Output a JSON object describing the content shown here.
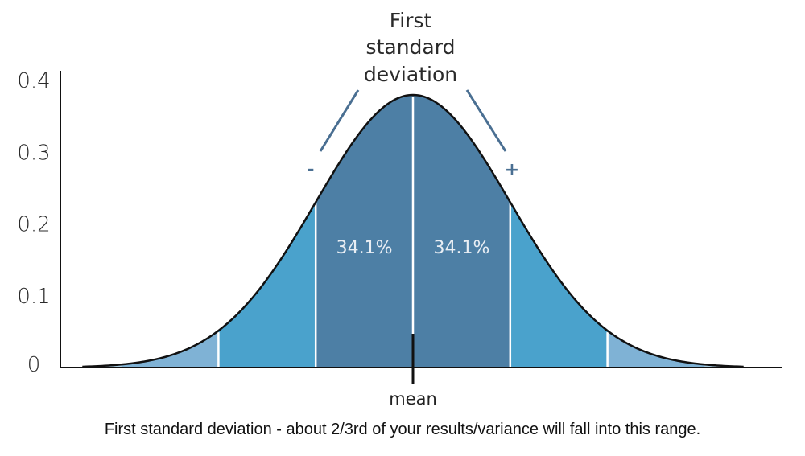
{
  "chart_data": {
    "type": "area",
    "title": "",
    "xlabel": "",
    "ylabel": "",
    "ylim": [
      0,
      0.4
    ],
    "yticks": [
      "0",
      "0.1",
      "0.2",
      "0.3",
      "0.4"
    ],
    "ytick_values": [
      0,
      0.1,
      0.2,
      0.3,
      0.4
    ],
    "xlim": [
      -3.4,
      3.4
    ],
    "distribution": {
      "name": "standard normal",
      "mean": 0,
      "sd": 1
    },
    "bands": [
      {
        "from": -3,
        "to": -2,
        "color": "#7fb2d5"
      },
      {
        "from": -2,
        "to": -1,
        "color": "#4aa2cc"
      },
      {
        "from": -1,
        "to": 0,
        "color": "#4d7fa5",
        "label": "34.1%"
      },
      {
        "from": 0,
        "to": 1,
        "color": "#4d7fa5",
        "label": "34.1%"
      },
      {
        "from": 1,
        "to": 2,
        "color": "#4aa2cc"
      },
      {
        "from": 2,
        "to": 3,
        "color": "#7fb2d5"
      }
    ],
    "annotation": {
      "title_lines": [
        "First",
        "standard",
        "deviation"
      ],
      "minus": "-",
      "plus": "+",
      "color": "#4a6f92"
    },
    "mean_label": "mean"
  },
  "caption": "First standard deviation - about 2/3rd of your results/variance will fall into this range."
}
